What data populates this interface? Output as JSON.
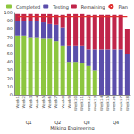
{
  "chart_data": {
    "type": "bar",
    "stacked": true,
    "grid": true,
    "legend": "top",
    "x_label": "Milking Engineering",
    "categories": [
      "Week1",
      "Week2",
      "Week3",
      "Week4",
      "Week5",
      "Week6",
      "Week7",
      "Week8",
      "Week9",
      "Week10",
      "Week11",
      "Week12",
      "Week13",
      "Week14",
      "Week15",
      "Week16",
      "Week17",
      "Week18"
    ],
    "x_groups": [
      "Q1",
      "Q2",
      "Q3",
      "Q4"
    ],
    "ylim": [
      0,
      100
    ],
    "yticks": [
      0,
      10,
      20,
      30,
      40,
      50,
      60,
      70,
      80,
      90,
      100
    ],
    "series": [
      {
        "name": "Completed",
        "color": "#8dc63f",
        "values": [
          72,
          72,
          70,
          70,
          68,
          68,
          65,
          60,
          40,
          40,
          38,
          35,
          30,
          0,
          0,
          0,
          0,
          0
        ]
      },
      {
        "name": "Testing",
        "color": "#5b4eab",
        "values": [
          18,
          18,
          20,
          20,
          20,
          18,
          20,
          22,
          20,
          20,
          22,
          20,
          25,
          55,
          55,
          55,
          55,
          50
        ]
      },
      {
        "name": "Remaining",
        "color": "#c0254a",
        "values": [
          8,
          8,
          8,
          8,
          10,
          12,
          12,
          15,
          38,
          38,
          38,
          42,
          42,
          42,
          42,
          42,
          42,
          30
        ]
      },
      {
        "name": "Plan",
        "color": "#e03030",
        "type": "line",
        "values": [
          95,
          95,
          95,
          95,
          95,
          95,
          95,
          95,
          95,
          95,
          95,
          95,
          95,
          95,
          95,
          95,
          95,
          95
        ]
      }
    ]
  }
}
